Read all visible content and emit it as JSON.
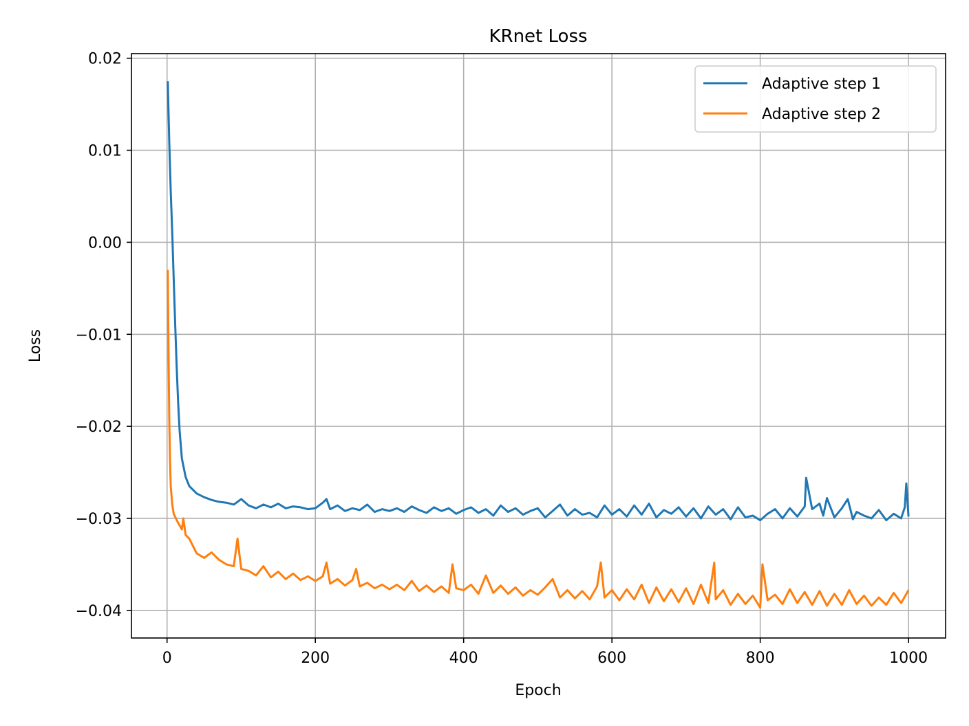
{
  "chart_data": {
    "type": "line",
    "title": "KRnet Loss",
    "xlabel": "Epoch",
    "ylabel": "Loss",
    "xlim": [
      -48,
      1050
    ],
    "ylim": [
      -0.043,
      0.0205
    ],
    "xticks": [
      0,
      200,
      400,
      600,
      800,
      1000
    ],
    "xtick_labels": [
      "0",
      "200",
      "400",
      "600",
      "800",
      "1000"
    ],
    "yticks": [
      0.02,
      0.01,
      0.0,
      -0.01,
      -0.02,
      -0.03,
      -0.04
    ],
    "ytick_labels": [
      "0.02",
      "0.01",
      "0.00",
      "−0.01",
      "−0.02",
      "−0.03",
      "−0.04"
    ],
    "grid": true,
    "legend_position": "upper-right",
    "series": [
      {
        "name": "Adaptive step 1",
        "color": "#1f77b4",
        "x": [
          1,
          3,
          5,
          7,
          9,
          11,
          13,
          15,
          17,
          20,
          25,
          30,
          40,
          50,
          60,
          70,
          80,
          90,
          100,
          110,
          120,
          130,
          140,
          150,
          160,
          170,
          180,
          190,
          200,
          210,
          215,
          220,
          230,
          240,
          250,
          260,
          270,
          280,
          290,
          300,
          310,
          320,
          330,
          340,
          350,
          360,
          370,
          380,
          390,
          400,
          410,
          420,
          430,
          440,
          450,
          460,
          470,
          480,
          490,
          500,
          510,
          520,
          530,
          540,
          550,
          560,
          570,
          580,
          590,
          600,
          610,
          620,
          630,
          640,
          650,
          660,
          670,
          680,
          690,
          700,
          710,
          720,
          730,
          740,
          750,
          760,
          770,
          780,
          790,
          800,
          810,
          820,
          830,
          840,
          850,
          860,
          862,
          870,
          880,
          885,
          890,
          900,
          910,
          918,
          925,
          930,
          940,
          950,
          960,
          970,
          980,
          990,
          995,
          997,
          1000
        ],
        "values": [
          0.0175,
          0.011,
          0.0055,
          0.001,
          -0.004,
          -0.009,
          -0.0135,
          -0.0175,
          -0.0205,
          -0.0235,
          -0.0255,
          -0.0265,
          -0.0273,
          -0.0277,
          -0.028,
          -0.0282,
          -0.0283,
          -0.0285,
          -0.0279,
          -0.0286,
          -0.0289,
          -0.0285,
          -0.0288,
          -0.0284,
          -0.0289,
          -0.0287,
          -0.0288,
          -0.029,
          -0.0289,
          -0.0283,
          -0.0279,
          -0.029,
          -0.0286,
          -0.0292,
          -0.0289,
          -0.0291,
          -0.0285,
          -0.0293,
          -0.029,
          -0.0292,
          -0.0289,
          -0.0293,
          -0.0287,
          -0.0291,
          -0.0294,
          -0.0288,
          -0.0292,
          -0.0289,
          -0.0295,
          -0.0291,
          -0.0288,
          -0.0294,
          -0.029,
          -0.0297,
          -0.0286,
          -0.0293,
          -0.0289,
          -0.0296,
          -0.0292,
          -0.0289,
          -0.0299,
          -0.0292,
          -0.0285,
          -0.0297,
          -0.029,
          -0.0296,
          -0.0294,
          -0.0299,
          -0.0286,
          -0.0296,
          -0.029,
          -0.0298,
          -0.0286,
          -0.0296,
          -0.0284,
          -0.0299,
          -0.0291,
          -0.0295,
          -0.0288,
          -0.0298,
          -0.0289,
          -0.03,
          -0.0287,
          -0.0296,
          -0.029,
          -0.0301,
          -0.0288,
          -0.0299,
          -0.0297,
          -0.0302,
          -0.0295,
          -0.029,
          -0.03,
          -0.0289,
          -0.0298,
          -0.0287,
          -0.0256,
          -0.029,
          -0.0284,
          -0.0297,
          -0.0278,
          -0.0299,
          -0.0289,
          -0.0279,
          -0.0301,
          -0.0293,
          -0.0297,
          -0.03,
          -0.0291,
          -0.0302,
          -0.0295,
          -0.03,
          -0.0288,
          -0.0262,
          -0.0298
        ]
      },
      {
        "name": "Adaptive step 2",
        "color": "#ff7f0e",
        "x": [
          1,
          2,
          3,
          4,
          5,
          7,
          9,
          12,
          15,
          20,
          22,
          25,
          30,
          40,
          50,
          60,
          70,
          80,
          90,
          95,
          100,
          110,
          120,
          130,
          140,
          150,
          160,
          170,
          180,
          190,
          200,
          210,
          215,
          220,
          230,
          240,
          250,
          255,
          260,
          270,
          280,
          290,
          300,
          310,
          320,
          330,
          340,
          350,
          360,
          370,
          380,
          385,
          390,
          400,
          410,
          420,
          430,
          440,
          450,
          460,
          470,
          480,
          490,
          500,
          510,
          520,
          530,
          540,
          550,
          560,
          570,
          580,
          585,
          590,
          600,
          610,
          620,
          630,
          640,
          650,
          660,
          670,
          680,
          690,
          700,
          710,
          720,
          730,
          738,
          740,
          750,
          760,
          770,
          780,
          790,
          800,
          803,
          810,
          820,
          830,
          840,
          850,
          860,
          870,
          880,
          890,
          900,
          910,
          920,
          930,
          940,
          950,
          960,
          970,
          980,
          990,
          1000
        ],
        "values": [
          -0.003,
          -0.012,
          -0.019,
          -0.0235,
          -0.0265,
          -0.0285,
          -0.0295,
          -0.03,
          -0.0305,
          -0.0312,
          -0.03,
          -0.0318,
          -0.0322,
          -0.0338,
          -0.0343,
          -0.0337,
          -0.0345,
          -0.035,
          -0.0352,
          -0.0322,
          -0.0355,
          -0.0357,
          -0.0362,
          -0.0352,
          -0.0364,
          -0.0358,
          -0.0366,
          -0.036,
          -0.0367,
          -0.0363,
          -0.0368,
          -0.0363,
          -0.0348,
          -0.0371,
          -0.0366,
          -0.0373,
          -0.0367,
          -0.0355,
          -0.0374,
          -0.037,
          -0.0376,
          -0.0372,
          -0.0377,
          -0.0372,
          -0.0378,
          -0.0368,
          -0.0379,
          -0.0373,
          -0.038,
          -0.0374,
          -0.0381,
          -0.035,
          -0.0376,
          -0.0378,
          -0.0372,
          -0.0382,
          -0.0362,
          -0.0381,
          -0.0373,
          -0.0382,
          -0.0375,
          -0.0384,
          -0.0378,
          -0.0383,
          -0.0375,
          -0.0366,
          -0.0386,
          -0.0378,
          -0.0387,
          -0.0379,
          -0.0388,
          -0.0374,
          -0.0348,
          -0.0386,
          -0.0378,
          -0.0389,
          -0.0377,
          -0.0388,
          -0.0372,
          -0.0392,
          -0.0375,
          -0.039,
          -0.0377,
          -0.0391,
          -0.0376,
          -0.0393,
          -0.0372,
          -0.0392,
          -0.0348,
          -0.0388,
          -0.0378,
          -0.0394,
          -0.0382,
          -0.0393,
          -0.0384,
          -0.0397,
          -0.035,
          -0.0389,
          -0.0383,
          -0.0393,
          -0.0377,
          -0.0392,
          -0.038,
          -0.0394,
          -0.0379,
          -0.0395,
          -0.0382,
          -0.0394,
          -0.0378,
          -0.0393,
          -0.0384,
          -0.0395,
          -0.0386,
          -0.0394,
          -0.0381,
          -0.0392,
          -0.0378
        ]
      }
    ]
  }
}
